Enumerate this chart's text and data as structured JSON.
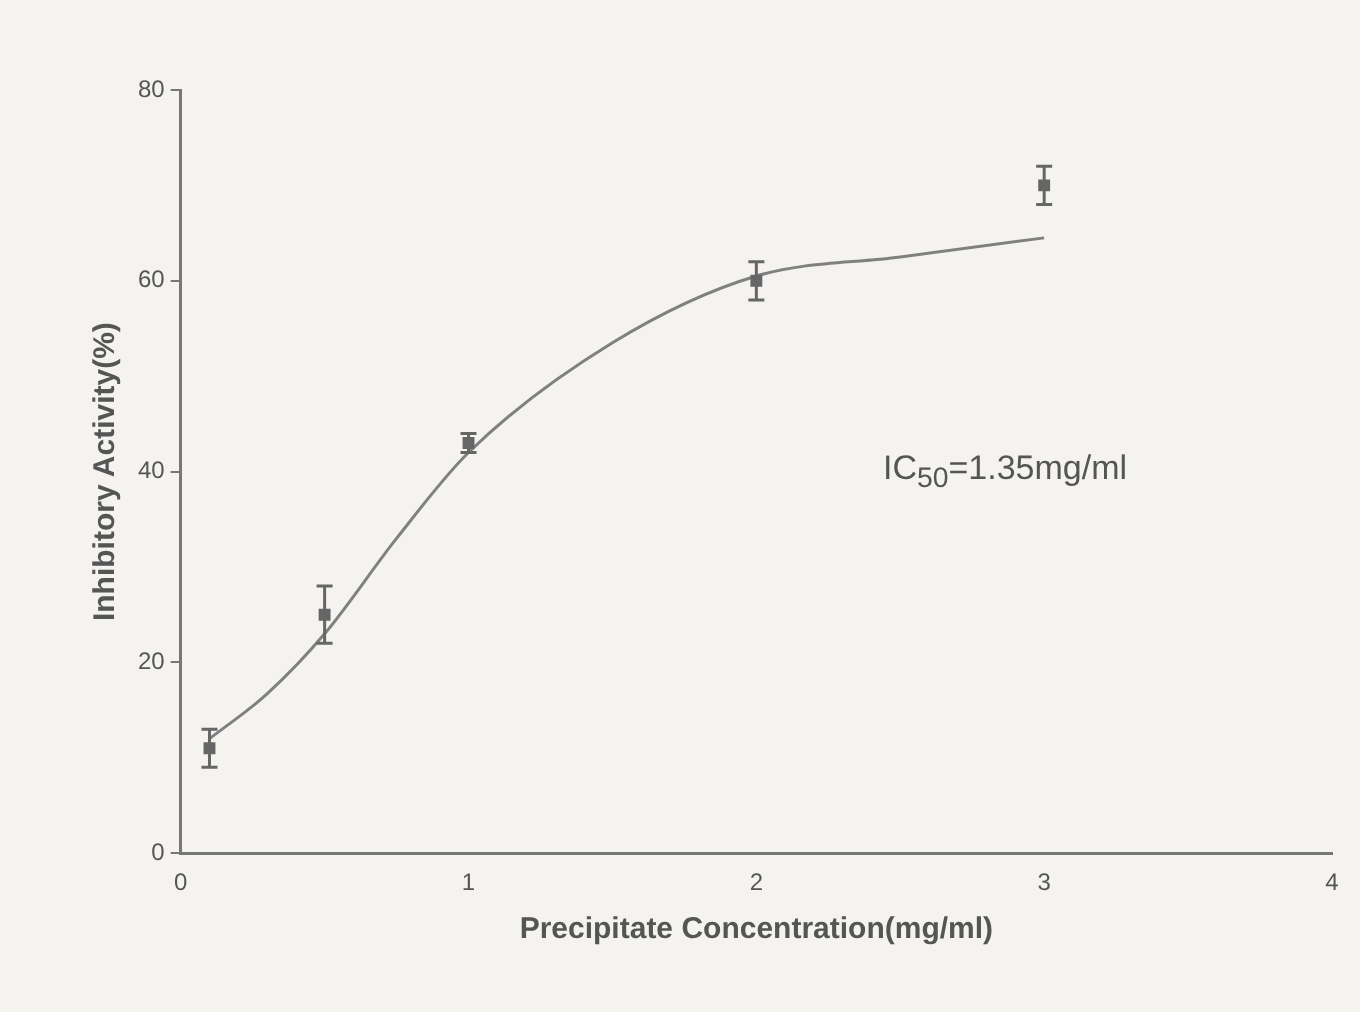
{
  "chart_data": {
    "type": "scatter",
    "xlabel": "Precipitate Concentration(mg/ml)",
    "ylabel": "Inhibitory Activity(%)",
    "xlim": [
      0,
      4
    ],
    "xticks": [
      0,
      1,
      2,
      3,
      4
    ],
    "ylim": [
      0,
      80
    ],
    "yticks": [
      0,
      20,
      40,
      60,
      80
    ],
    "grid": false,
    "legend": false,
    "marker": "square",
    "series": [
      {
        "color": "#666666",
        "x": [
          0.1,
          0.5,
          1,
          2,
          3
        ],
        "values": [
          11,
          25,
          43,
          60,
          70
        ],
        "errors": [
          2,
          3,
          1,
          2,
          2
        ]
      },
      {
        "type": "line",
        "color": "#808080",
        "marker": "none",
        "x": [
          0.1,
          0.3,
          0.5,
          0.75,
          1,
          1.5,
          2,
          2.5,
          3
        ],
        "values": [
          12,
          16.7,
          23,
          33,
          42,
          53.5,
          60.5,
          62.5,
          64.5
        ]
      }
    ],
    "annotations": [
      "IC$_{50}$=1.35mg/ml"
    ]
  }
}
